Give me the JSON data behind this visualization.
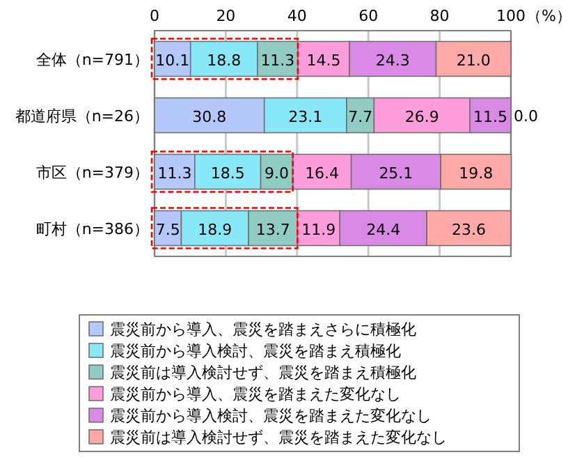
{
  "chart_data": {
    "type": "bar",
    "orientation": "horizontal",
    "stacked": true,
    "grid": "x",
    "legend": "bottom",
    "xlabel": "（%）",
    "categories": [
      "全体（n=791）",
      "都道府県（n=26）",
      "市区（n=379）",
      "町村（n=386）"
    ],
    "xlim": [
      0,
      100
    ],
    "xticks": [
      0,
      20,
      40,
      60,
      80,
      100
    ],
    "series": [
      {
        "name": "震災前から導入、震災を踏まえさらに積極化",
        "color": "#b4c8fa",
        "values": [
          10.1,
          30.8,
          11.3,
          7.5
        ],
        "value_labels": [
          "10.1",
          "30.8",
          "11.3",
          "7.5"
        ]
      },
      {
        "name": "震災前から導入検討、震災を踏まえ積極化",
        "color": "#88e8f8",
        "values": [
          18.8,
          23.1,
          18.5,
          18.9
        ],
        "value_labels": [
          "18.8",
          "23.1",
          "18.5",
          "18.9"
        ]
      },
      {
        "name": "震災前は導入検討せず、震災を踏まえ積極化",
        "color": "#90ccc4",
        "values": [
          11.3,
          7.7,
          9.0,
          13.7
        ],
        "value_labels": [
          "11.3",
          "7.7",
          "9.0",
          "13.7"
        ]
      },
      {
        "name": "震災前から導入、震災を踏まえた変化なし",
        "color": "#ff9cdc",
        "values": [
          14.5,
          26.9,
          16.4,
          11.9
        ],
        "value_labels": [
          "14.5",
          "26.9",
          "16.4",
          "11.9"
        ]
      },
      {
        "name": "震災前から導入検討、震災を踏まえた変化なし",
        "color": "#d88ae4",
        "values": [
          24.3,
          11.5,
          25.1,
          24.4
        ],
        "value_labels": [
          "24.3",
          "11.5",
          "25.1",
          "24.4"
        ]
      },
      {
        "name": "震災前は導入検討せず、震災を踏まえた変化なし",
        "color": "#ffa8a8",
        "values": [
          21.0,
          0.0,
          19.8,
          23.6
        ],
        "value_labels": [
          "21.0",
          "0.0",
          "19.8",
          "23.6"
        ]
      }
    ]
  }
}
